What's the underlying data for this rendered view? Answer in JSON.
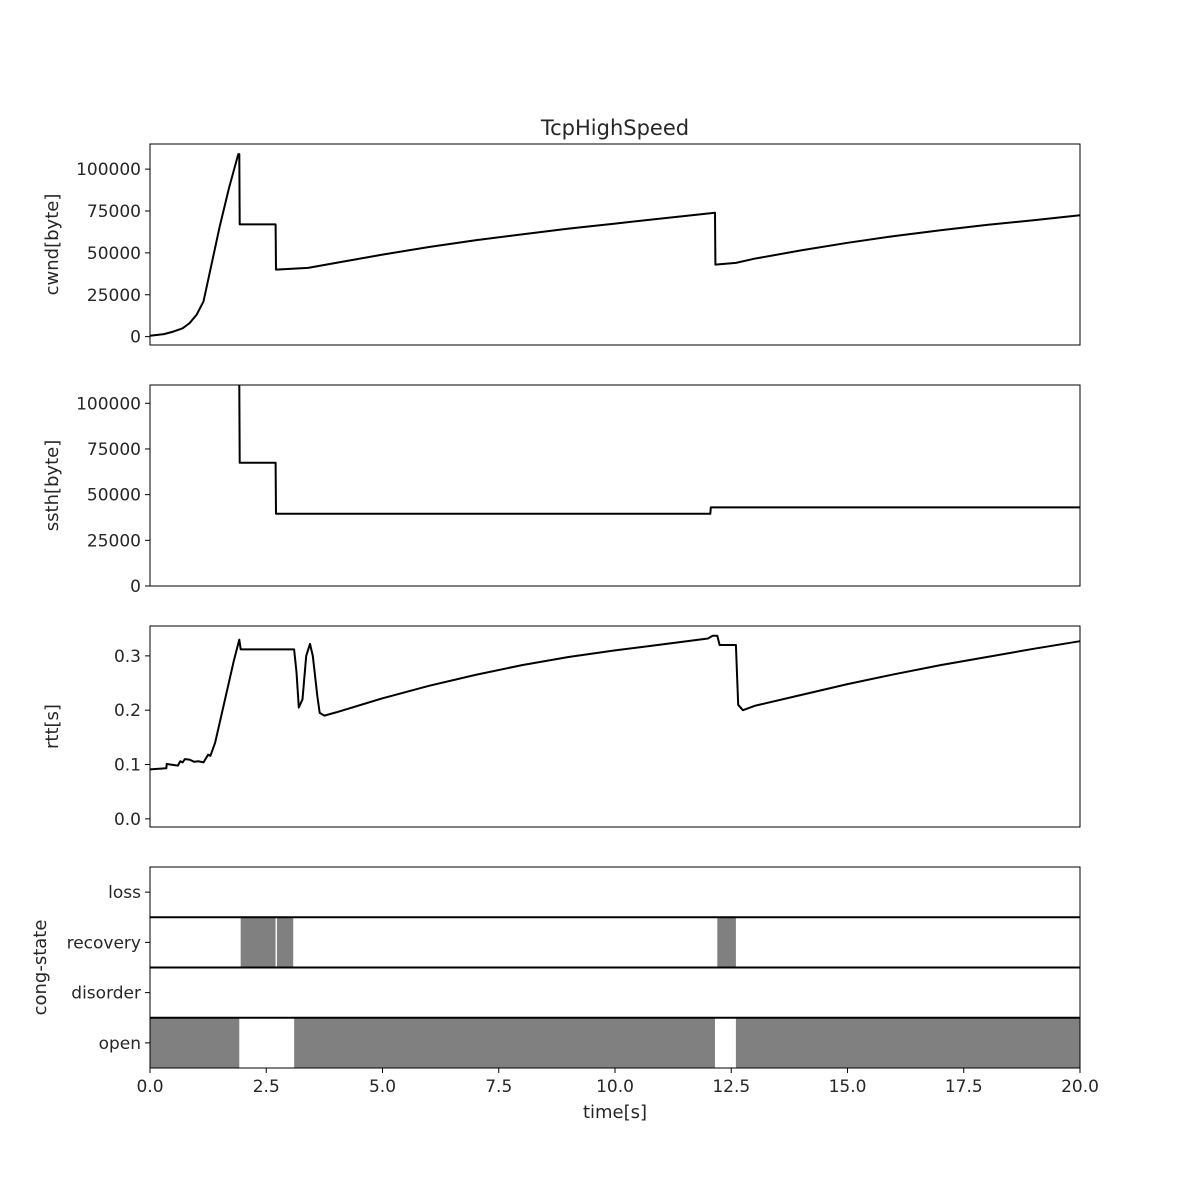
{
  "chart_data": {
    "title": "TcpHighSpeed",
    "xlabel": "time[s]",
    "xlim": [
      0,
      20
    ],
    "xticks": [
      "0.0",
      "2.5",
      "5.0",
      "7.5",
      "10.0",
      "12.5",
      "15.0",
      "17.5",
      "20.0"
    ],
    "xtick_values": [
      0,
      2.5,
      5,
      7.5,
      10,
      12.5,
      15,
      17.5,
      20
    ],
    "line_color": "#000000",
    "span_color": "#808080",
    "subplots": [
      {
        "type": "line",
        "ylabel": "cwnd[byte]",
        "ylim": [
          -5000,
          115000
        ],
        "yticks": [
          "0",
          "25000",
          "50000",
          "75000",
          "100000"
        ],
        "ytick_values": [
          0,
          25000,
          50000,
          75000,
          100000
        ],
        "x": [
          0,
          0.3,
          0.5,
          0.7,
          0.85,
          1.0,
          1.15,
          1.3,
          1.5,
          1.7,
          1.9,
          1.92,
          1.93,
          2.7,
          2.71,
          3.4,
          4.0,
          5.0,
          6.0,
          7.0,
          8.0,
          9.0,
          10.0,
          11.0,
          12.0,
          12.15,
          12.16,
          12.6,
          13.0,
          14.0,
          15.0,
          16.0,
          17.0,
          18.0,
          19.0,
          20.0
        ],
        "y": [
          500,
          1500,
          3000,
          5000,
          8000,
          13000,
          21000,
          40000,
          66000,
          89000,
          109000,
          109000,
          67000,
          67000,
          40000,
          41000,
          44000,
          49000,
          53500,
          57500,
          61000,
          64500,
          67500,
          70500,
          73500,
          74000,
          43000,
          44000,
          46500,
          51500,
          56000,
          60000,
          63500,
          66700,
          69500,
          72500
        ]
      },
      {
        "type": "line",
        "ylabel": "ssth[byte]",
        "ylim": [
          0,
          110000
        ],
        "yticks": [
          "0",
          "25000",
          "50000",
          "75000",
          "100000"
        ],
        "ytick_values": [
          0,
          25000,
          50000,
          75000,
          100000
        ],
        "x": [
          1.92,
          1.93,
          2.7,
          2.71,
          12.05,
          12.06,
          20.0
        ],
        "y": [
          110000,
          67500,
          67500,
          39500,
          39500,
          43000,
          43000
        ]
      },
      {
        "type": "line",
        "ylabel": "rtt[s]",
        "ylim": [
          -0.015,
          0.355
        ],
        "yticks": [
          "0.0",
          "0.1",
          "0.2",
          "0.3"
        ],
        "ytick_values": [
          0,
          0.1,
          0.2,
          0.3
        ],
        "x": [
          0,
          0.35,
          0.36,
          0.6,
          0.65,
          0.7,
          0.75,
          0.85,
          0.95,
          1.05,
          1.15,
          1.25,
          1.3,
          1.4,
          1.6,
          1.8,
          1.92,
          1.95,
          2.5,
          3.1,
          3.15,
          3.2,
          3.28,
          3.36,
          3.44,
          3.5,
          3.6,
          3.65,
          3.75,
          4.0,
          5.0,
          6.0,
          7.0,
          8.0,
          9.0,
          10.0,
          11.0,
          12.0,
          12.1,
          12.2,
          12.25,
          12.6,
          12.65,
          12.75,
          13.0,
          14.0,
          15.0,
          16.0,
          17.0,
          18.0,
          19.0,
          20.0
        ],
        "y": [
          0.091,
          0.093,
          0.101,
          0.098,
          0.106,
          0.104,
          0.11,
          0.109,
          0.105,
          0.106,
          0.104,
          0.118,
          0.116,
          0.14,
          0.215,
          0.29,
          0.33,
          0.312,
          0.312,
          0.312,
          0.27,
          0.205,
          0.22,
          0.3,
          0.322,
          0.3,
          0.225,
          0.195,
          0.19,
          0.196,
          0.222,
          0.245,
          0.265,
          0.283,
          0.298,
          0.31,
          0.321,
          0.332,
          0.337,
          0.337,
          0.32,
          0.32,
          0.21,
          0.2,
          0.208,
          0.228,
          0.248,
          0.266,
          0.283,
          0.298,
          0.313,
          0.327
        ]
      },
      {
        "type": "state-spans",
        "ylabel": "cong-state",
        "states": [
          "loss",
          "recovery",
          "disorder",
          "open"
        ],
        "spans": [
          {
            "state": "open",
            "start": 0.0,
            "end": 1.92
          },
          {
            "state": "recovery",
            "start": 1.95,
            "end": 2.7
          },
          {
            "state": "recovery",
            "start": 2.73,
            "end": 3.08
          },
          {
            "state": "open",
            "start": 3.1,
            "end": 12.15
          },
          {
            "state": "recovery",
            "start": 12.2,
            "end": 12.6
          },
          {
            "state": "open",
            "start": 12.6,
            "end": 20.0
          }
        ]
      }
    ]
  }
}
